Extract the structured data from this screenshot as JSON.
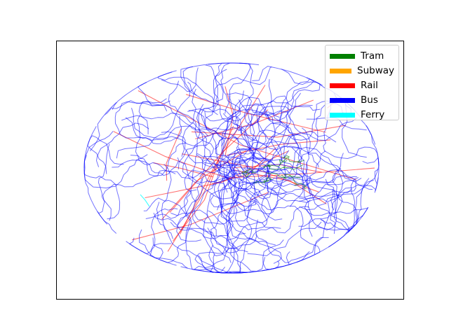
{
  "legend": [
    {
      "label": "Tram",
      "color": "#008000"
    },
    {
      "label": "Subway",
      "color": "#ffa500"
    },
    {
      "label": "Rail",
      "color": "#ff0000"
    },
    {
      "label": "Bus",
      "color": "#0000ff"
    },
    {
      "label": "Ferry",
      "color": "#00ffff"
    }
  ],
  "axes": {
    "xticks": [],
    "yticks": [],
    "grid": false,
    "legend_position": "top-right"
  }
}
